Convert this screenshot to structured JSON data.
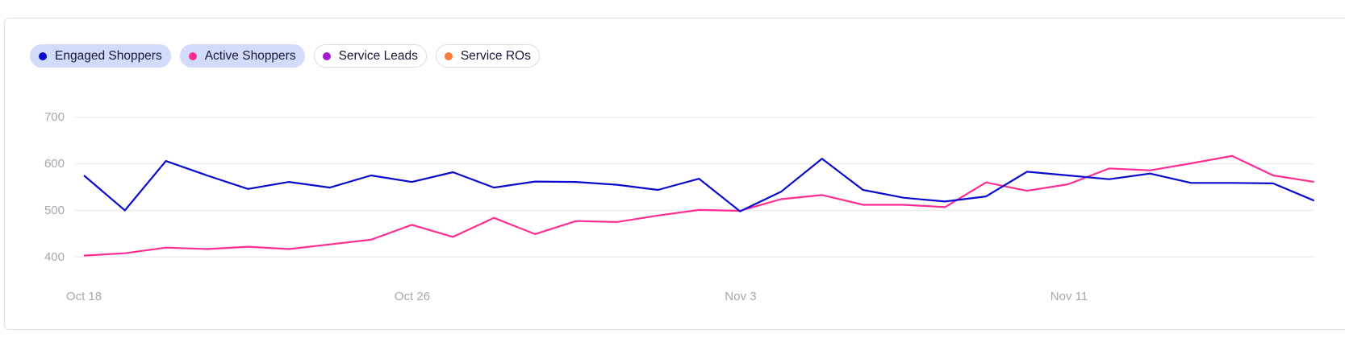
{
  "legend": [
    {
      "label": "Engaged Shoppers",
      "color": "#0a0acc",
      "active": true
    },
    {
      "label": "Active Shoppers",
      "color": "#ff2d8f",
      "active": true
    },
    {
      "label": "Service Leads",
      "color": "#a21ccf",
      "active": false
    },
    {
      "label": "Service ROs",
      "color": "#fb7a35",
      "active": false
    }
  ],
  "y_axis": {
    "ticks": [
      "700",
      "600",
      "500",
      "400"
    ]
  },
  "x_axis": {
    "ticks": [
      "Oct 18",
      "Oct 26",
      "Nov 3",
      "Nov 11"
    ]
  },
  "chart_data": {
    "type": "line",
    "title": "",
    "xlabel": "",
    "ylabel": "",
    "ylim": [
      400,
      700
    ],
    "yticks": [
      400,
      500,
      600,
      700
    ],
    "grid": true,
    "legend_position": "top-left",
    "x": [
      "Oct 18",
      "Oct 19",
      "Oct 20",
      "Oct 21",
      "Oct 22",
      "Oct 23",
      "Oct 24",
      "Oct 25",
      "Oct 26",
      "Oct 27",
      "Oct 28",
      "Oct 29",
      "Oct 30",
      "Oct 31",
      "Nov 1",
      "Nov 2",
      "Nov 3",
      "Nov 4",
      "Nov 5",
      "Nov 6",
      "Nov 7",
      "Nov 8",
      "Nov 9",
      "Nov 10",
      "Nov 11",
      "Nov 12",
      "Nov 13",
      "Nov 14",
      "Nov 15",
      "Nov 16",
      "Nov 17"
    ],
    "x_tick_labels": [
      "Oct 18",
      "Oct 26",
      "Nov 3",
      "Nov 11"
    ],
    "series": [
      {
        "name": "Engaged Shoppers",
        "color": "#0a0acc",
        "values": [
          575,
          500,
          606,
          575,
          546,
          561,
          549,
          575,
          561,
          582,
          549,
          562,
          561,
          555,
          544,
          568,
          498,
          540,
          611,
          544,
          527,
          519,
          530,
          583,
          575,
          567,
          579,
          559,
          559,
          558,
          521
        ]
      },
      {
        "name": "Active Shoppers",
        "color": "#ff2d8f",
        "values": [
          403,
          408,
          420,
          417,
          422,
          417,
          427,
          437,
          469,
          443,
          484,
          449,
          477,
          475,
          489,
          501,
          499,
          524,
          533,
          512,
          512,
          507,
          560,
          542,
          556,
          590,
          586,
          601,
          617,
          575,
          561
        ]
      },
      {
        "name": "Service Leads",
        "color": "#a21ccf",
        "values": [],
        "hidden": true
      },
      {
        "name": "Service ROs",
        "color": "#fb7a35",
        "values": [],
        "hidden": true
      }
    ]
  }
}
